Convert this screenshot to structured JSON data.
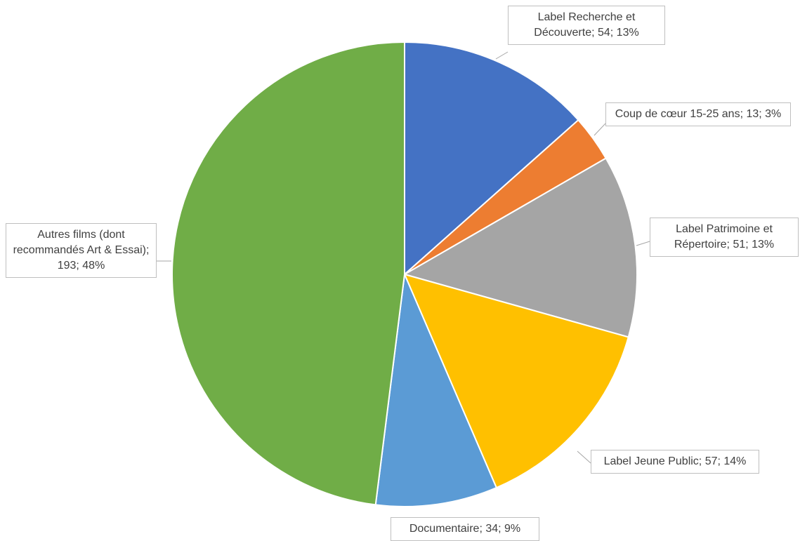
{
  "chart_data": {
    "type": "pie",
    "categories": [
      "Label Recherche et Découverte",
      "Coup de cœur 15-25 ans",
      "Label Patrimoine et Répertoire",
      "Label Jeune Public",
      "Documentaire",
      "Autres films (dont recommandés Art & Essai)"
    ],
    "values": [
      54,
      13,
      51,
      57,
      34,
      193
    ],
    "value_labels": [
      "Label Recherche et Découverte; 54; 13%",
      "Coup de cœur 15-25 ans; 13; 3%",
      "Label Patrimoine et Répertoire; 51; 13%",
      "Label Jeune Public; 57; 14%",
      "Documentaire; 34; 9%",
      "Autres films (dont recommandés Art & Essai); 193; 48%"
    ],
    "colors": [
      "#4472c4",
      "#ed7d31",
      "#a5a5a5",
      "#ffc000",
      "#5b9bd5",
      "#70ad47"
    ]
  }
}
